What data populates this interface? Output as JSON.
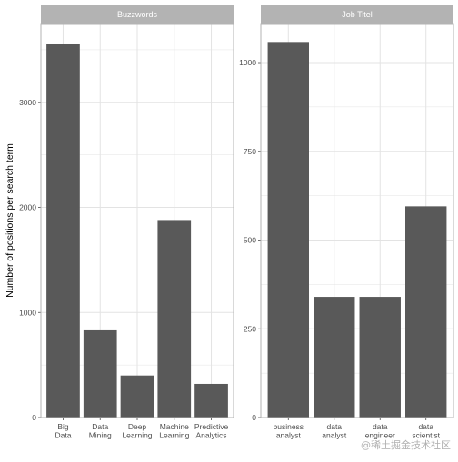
{
  "chart_data": [
    {
      "type": "bar",
      "facet_title": "Buzzwords",
      "categories": [
        "Big\nData",
        "Data\nMining",
        "Deep\nLearning",
        "Machine\nLearning",
        "Predictive\nAnalytics"
      ],
      "values": [
        3560,
        830,
        400,
        1880,
        320
      ],
      "ylim": [
        0,
        3750
      ],
      "yticks": [
        0,
        1000,
        2000,
        3000
      ],
      "ylabel": "Number of positions per search term",
      "xlabel": "",
      "grid": true,
      "bar_color": "#595959"
    },
    {
      "type": "bar",
      "facet_title": "Job Titel",
      "categories": [
        "business\nanalyst",
        "data\nanalyst",
        "data\nengineer",
        "data\nscientist"
      ],
      "values": [
        1058,
        340,
        340,
        595
      ],
      "ylim": [
        0,
        1110
      ],
      "yticks": [
        0,
        250,
        500,
        750,
        1000
      ],
      "ylabel": "",
      "xlabel": "",
      "grid": true,
      "bar_color": "#595959"
    }
  ],
  "colors": {
    "strip_bg": "#b3b3b3",
    "strip_text": "#ffffff",
    "grid": "#e3e3e3",
    "panel_border": "#b3b3b3",
    "axis_text": "#4d4d4d"
  },
  "watermark": "@稀土掘金技术社区"
}
